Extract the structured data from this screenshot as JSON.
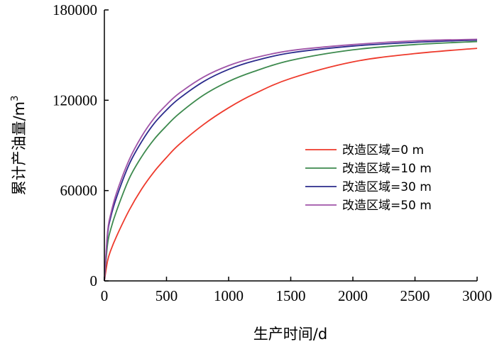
{
  "chart_data": {
    "type": "line",
    "title": "",
    "xlabel": "生产时间/d",
    "ylabel": "累计产油量/m",
    "ylabel_superscript": "3",
    "xlim": [
      0,
      3000
    ],
    "ylim": [
      0,
      180000
    ],
    "xticks": [
      "0",
      "500",
      "1000",
      "1500",
      "2000",
      "2500",
      "3000"
    ],
    "yticks": [
      "0",
      "60000",
      "120000",
      "180000"
    ],
    "grid": false,
    "legend_position": "center-right",
    "x": [
      0,
      25,
      50,
      100,
      200,
      300,
      400,
      500,
      600,
      800,
      1000,
      1200,
      1500,
      2000,
      2500,
      3000
    ],
    "series": [
      {
        "name": "改造区域=0 m",
        "color": "#ee3a2c",
        "values": [
          0,
          13000,
          20000,
          30000,
          47000,
          61000,
          72500,
          82000,
          90500,
          104000,
          115000,
          124000,
          134500,
          145500,
          151000,
          154500
        ]
      },
      {
        "name": "改造区域=10 m",
        "color": "#3d8a4e",
        "values": [
          0,
          24000,
          34000,
          47000,
          68000,
          82500,
          94000,
          103000,
          111000,
          123500,
          132500,
          139000,
          146500,
          153500,
          157000,
          159000
        ]
      },
      {
        "name": "改造区域=30 m",
        "color": "#2b2b8c",
        "values": [
          0,
          30000,
          42000,
          56000,
          77500,
          92500,
          104500,
          113500,
          121000,
          132500,
          140500,
          146000,
          151500,
          156000,
          158500,
          160000
        ]
      },
      {
        "name": "改造区域=50 m",
        "color": "#a055a8",
        "values": [
          0,
          32000,
          44000,
          59000,
          80500,
          96000,
          108000,
          117000,
          124500,
          135500,
          143000,
          148000,
          153000,
          157000,
          159500,
          160500
        ]
      }
    ]
  }
}
